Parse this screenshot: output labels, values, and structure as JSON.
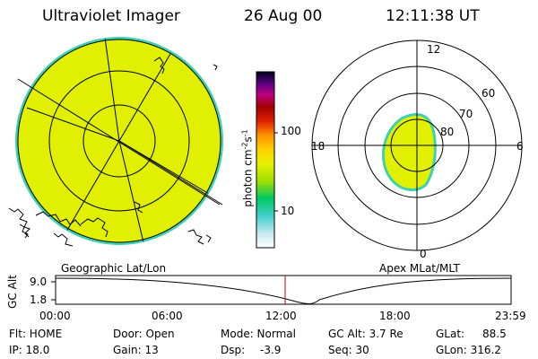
{
  "header": {
    "instrument": "Ultraviolet Imager",
    "date": "26 Aug 00",
    "time": "12:11:38 UT"
  },
  "colorbar": {
    "unit_label": "photon cm",
    "unit_sup1": "-2",
    "unit_mid": "s",
    "unit_sup2": "-1",
    "tick_high": "100",
    "tick_low": "10"
  },
  "polar": {
    "mlt_12": "12",
    "mlt_18": "18",
    "mlt_6": "6",
    "mlt_0": "0",
    "lat_60": "60",
    "lat_70": "70",
    "lat_80": "80"
  },
  "panels": {
    "left_label": "Geographic Lat/Lon",
    "right_label": "Apex MLat/MLT"
  },
  "timeline": {
    "ylabel": "GC Alt",
    "tick_high": "9.0",
    "tick_low": "1.8",
    "times": [
      "00:00",
      "06:00",
      "12:00",
      "18:00",
      "23:59"
    ]
  },
  "status": {
    "flt": "Flt: HOME",
    "ip": "IP: 18.0",
    "door": "Door: Open",
    "gain": "Gain: 13",
    "mode": "Mode: Normal",
    "dsp_label": "Dsp:",
    "dsp_value": "-3.9",
    "gc_alt": "GC Alt: 3.7 Re",
    "seq": "Seq: 30",
    "glat": "GLat:",
    "glat_value": "88.5",
    "glon": "GLon: 316.2"
  },
  "colors": {
    "aurora_fill": "#e0f000",
    "rim": "#40d0b0",
    "marker": "#c00000"
  }
}
